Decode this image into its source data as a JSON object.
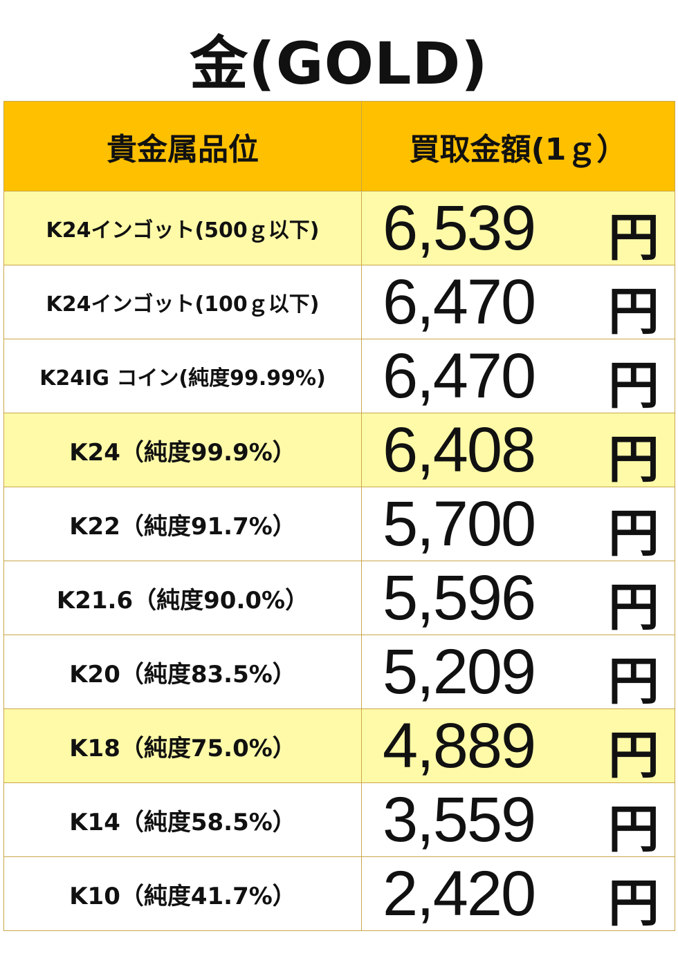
{
  "title": "金(GOLD)",
  "table": {
    "headers": {
      "grade": "貴金属品位",
      "price": "買取金額(1ｇ）"
    },
    "currency_unit": "円",
    "colors": {
      "header_bg": "#ffc000",
      "highlight_bg": "#fffaa8",
      "border": "#c9a64a"
    },
    "rows": [
      {
        "grade": "K24インゴット(500ｇ以下)",
        "price": "6,539",
        "unit": "円",
        "highlight": true
      },
      {
        "grade": "K24インゴット(100ｇ以下)",
        "price": "6,470",
        "unit": "円",
        "highlight": false
      },
      {
        "grade": "K24IG コイン(純度99.99%)",
        "price": "6,470",
        "unit": "円",
        "highlight": false
      },
      {
        "grade": "K24（純度99.9%）",
        "price": "6,408",
        "unit": "円",
        "highlight": true
      },
      {
        "grade": "K22（純度91.7%）",
        "price": "5,700",
        "unit": "円",
        "highlight": false
      },
      {
        "grade": "K21.6（純度90.0%）",
        "price": "5,596",
        "unit": "円",
        "highlight": false
      },
      {
        "grade": "K20（純度83.5%）",
        "price": "5,209",
        "unit": "円",
        "highlight": false
      },
      {
        "grade": "K18（純度75.0%）",
        "price": "4,889",
        "unit": "円",
        "highlight": true
      },
      {
        "grade": "K14（純度58.5%）",
        "price": "3,559",
        "unit": "円",
        "highlight": false
      },
      {
        "grade": "K10（純度41.7%）",
        "price": "2,420",
        "unit": "円",
        "highlight": false
      }
    ]
  }
}
